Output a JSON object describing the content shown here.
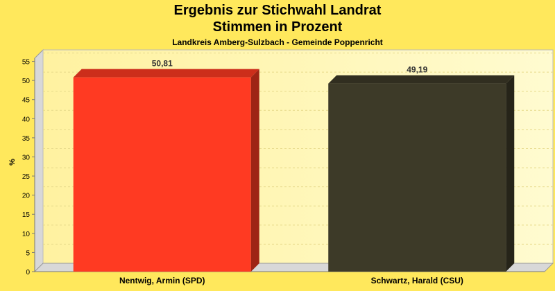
{
  "chart_data": {
    "type": "bar",
    "title": "Ergebnis zur Stichwahl Landrat",
    "title2": "Stimmen in Prozent",
    "subtitle": "Landkreis Amberg-Sulzbach - Gemeinde Poppenricht",
    "ylabel": "%",
    "xlabel": "",
    "ylim": [
      0,
      58
    ],
    "yticks": [
      0,
      5,
      10,
      15,
      20,
      25,
      30,
      35,
      40,
      45,
      50,
      55
    ],
    "grid": true,
    "categories": [
      "Nentwig, Armin (SPD)",
      "Schwartz, Harald (CSU)"
    ],
    "values": [
      50.81,
      49.19
    ],
    "value_labels": [
      "50,81",
      "49,19"
    ],
    "colors": [
      "#ff3a22",
      "#3d3a28"
    ]
  }
}
